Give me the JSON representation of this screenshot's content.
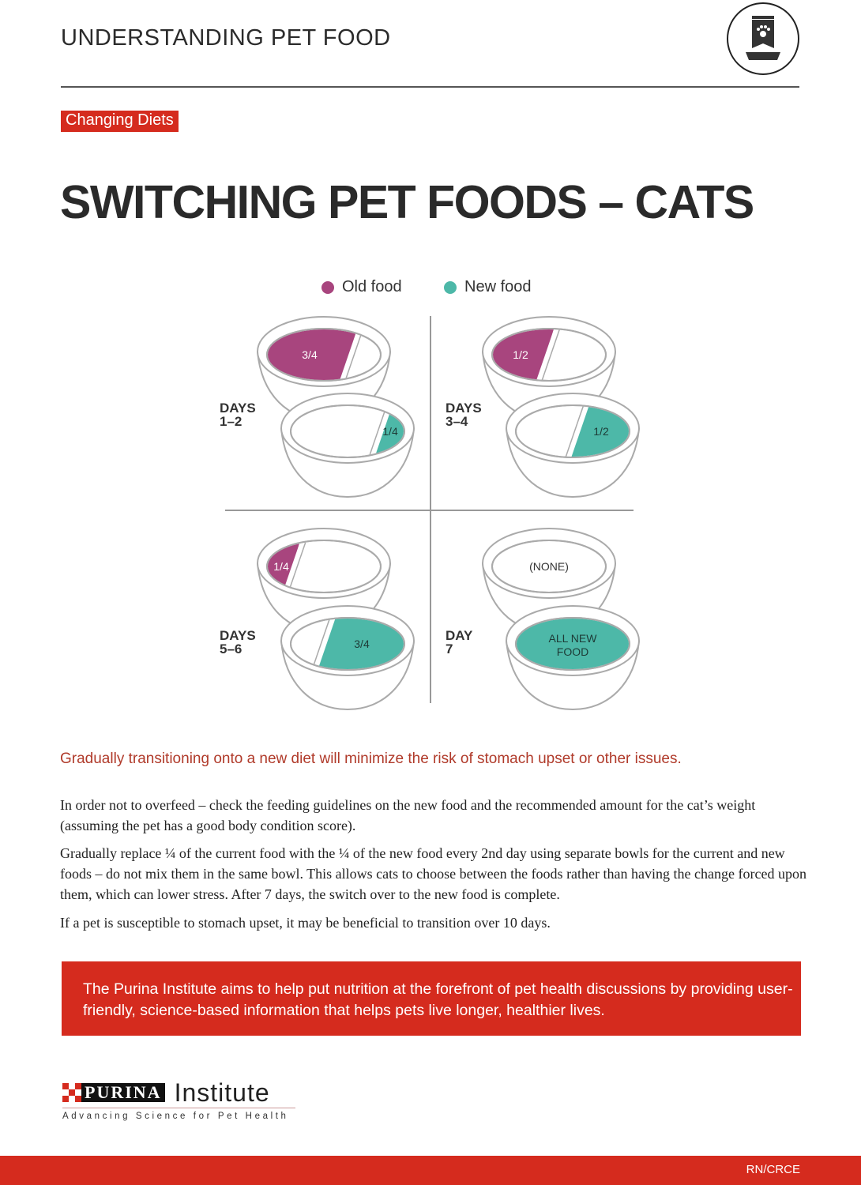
{
  "header": {
    "title": "UNDERSTANDING PET FOOD",
    "icon": "pet-food-bag-icon"
  },
  "section_badge": "Changing Diets",
  "page_title": "SWITCHING PET FOODS – CATS",
  "legend": [
    {
      "label": "Old food",
      "color": "#a8457e"
    },
    {
      "label": "New food",
      "color": "#4db8a8"
    }
  ],
  "schedule": [
    {
      "days_line1": "DAYS",
      "days_line2": "1–2",
      "old_fraction": 0.75,
      "old_label": "3/4",
      "new_fraction": 0.25,
      "new_label": "1/4"
    },
    {
      "days_line1": "DAYS",
      "days_line2": "3–4",
      "old_fraction": 0.5,
      "old_label": "1/2",
      "new_fraction": 0.5,
      "new_label": "1/2"
    },
    {
      "days_line1": "DAYS",
      "days_line2": "5–6",
      "old_fraction": 0.25,
      "old_label": "1/4",
      "new_fraction": 0.75,
      "new_label": "3/4"
    },
    {
      "days_line1": "DAY",
      "days_line2": "7",
      "old_fraction": 0,
      "old_label": "(NONE)",
      "new_fraction": 1,
      "new_label": "ALL NEW FOOD"
    }
  ],
  "lead": "Gradually transitioning onto a new diet will minimize the risk of stomach upset or other issues.",
  "paragraphs": [
    "In order not to overfeed – check the feeding guidelines on the new food and the recommended amount for the cat’s weight (assuming the pet has a good body condition score).",
    "Gradually replace ¼ of the current food with the ¼ of the new food every 2nd day using separate bowls for the current and new foods – do not mix them in the same bowl. This allows cats to choose between the foods rather than having the change forced upon them, which can lower stress. After 7 days, the switch over to the new food is complete.",
    "If a pet is susceptible to stomach upset, it may be beneficial to transition over 10 days."
  ],
  "banner": "The Purina Institute aims to help put nutrition at the forefront of pet health discussions by providing user-friendly, science-based information that helps pets live longer, healthier lives.",
  "logo": {
    "brand": "PURINA",
    "name": "Institute",
    "tagline": "Advancing Science for Pet Health"
  },
  "footer": {
    "code": "RN/CRCE"
  },
  "colors": {
    "brand_red": "#d52b1e",
    "old_food": "#a8457e",
    "new_food": "#4db8a8"
  }
}
